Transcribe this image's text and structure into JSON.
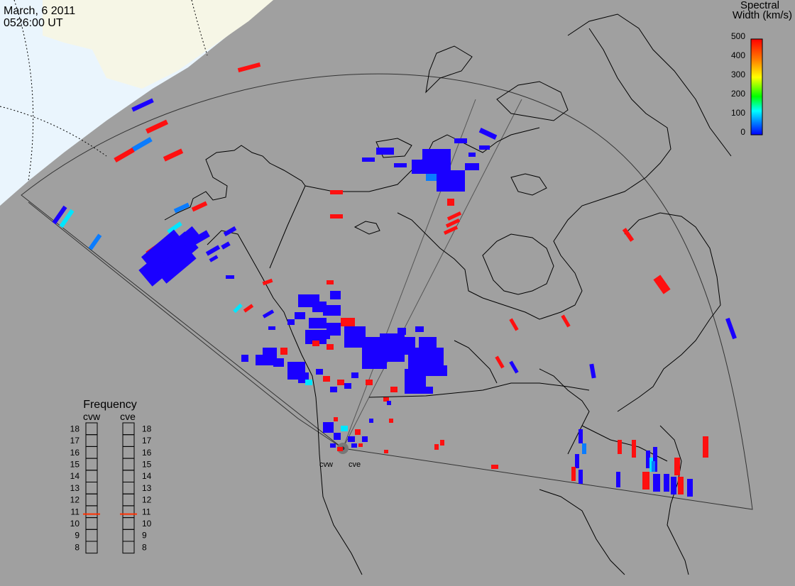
{
  "header": {
    "date": "March, 6 2011",
    "time": "0526:00 UT"
  },
  "colorbar": {
    "title_line1": "Spectral",
    "title_line2": "Width (km/s)",
    "ticks": [
      "500",
      "400",
      "300",
      "200",
      "100",
      "0"
    ],
    "scale_colors": [
      "#0000ff",
      "#0078ff",
      "#00ffff",
      "#00ff00",
      "#ffff00",
      "#ff8000",
      "#ff0000"
    ]
  },
  "radars": [
    {
      "code": "cvw"
    },
    {
      "code": "cve"
    }
  ],
  "frequency": {
    "title": "Frequency",
    "ticks": [
      "18",
      "17",
      "16",
      "15",
      "14",
      "13",
      "12",
      "11",
      "10",
      "9",
      "8"
    ],
    "cvw": "cvw",
    "cve": "cve",
    "cvw_marker": 10.8,
    "cve_marker": 10.8,
    "marker_color": "#ff3000"
  },
  "colors": {
    "background": "#a0a0a0",
    "ocean": "#e8f4fc",
    "land_shade": "#f6f6e6",
    "scatter_blue": "#1a00ff",
    "scatter_red": "#ff1010",
    "scatter_lightblue": "#0a7cff",
    "scatter_cyan": "#00e6ff"
  }
}
